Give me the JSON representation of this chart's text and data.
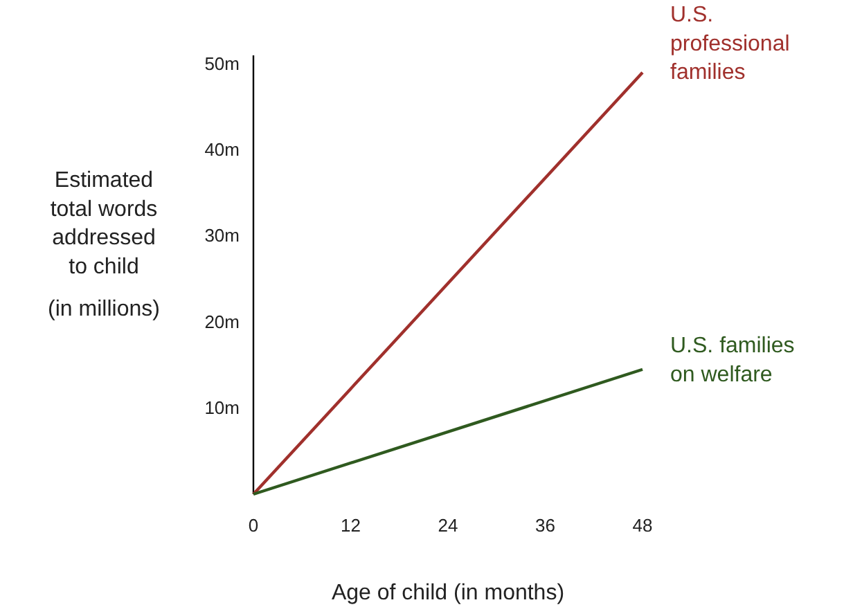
{
  "chart_data": {
    "type": "line",
    "xlabel": "Age of child (in months)",
    "ylabel": "Estimated total words addressed to child (in millions)",
    "x": [
      0,
      48
    ],
    "xlim": [
      0,
      48
    ],
    "xticks": [
      0,
      12,
      24,
      36,
      48
    ],
    "ylim": [
      0,
      51
    ],
    "yticks": [
      {
        "value": 10,
        "label": "10m"
      },
      {
        "value": 20,
        "label": "20m"
      },
      {
        "value": 30,
        "label": "30m"
      },
      {
        "value": 40,
        "label": "40m"
      },
      {
        "value": 50,
        "label": "50m"
      }
    ],
    "series": [
      {
        "name": "U.S. professional families",
        "color": "#a0302c",
        "values": [
          0,
          49
        ]
      },
      {
        "name": "U.S. families on welfare",
        "color": "#2f5a1f",
        "values": [
          0,
          14.5
        ]
      }
    ],
    "grid": false,
    "legend": false,
    "marker": "none",
    "line_style": "solid"
  }
}
